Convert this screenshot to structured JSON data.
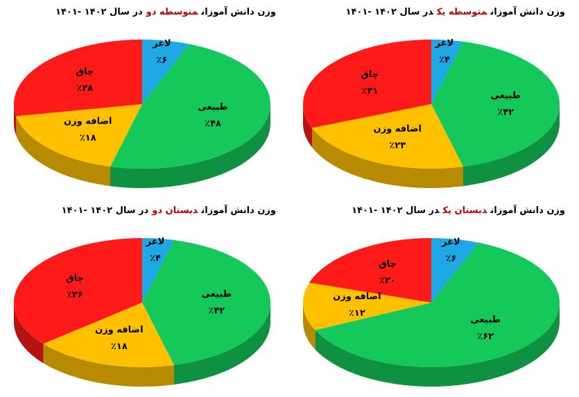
{
  "chart_data": [
    {
      "type": "pie3d",
      "title": [
        "وزن دانش آموزان",
        "متوسطه دو",
        "در سال ۱۴۰۲ -۱۴۰۱"
      ],
      "categories": [
        "لاغر",
        "طبیعی",
        "اضافه وزن",
        "چاق"
      ],
      "values": [
        6,
        48,
        18,
        28
      ],
      "value_labels": [
        "٪۶",
        "٪۴۸",
        "٪۱۸",
        "٪۲۸"
      ],
      "colors": [
        "#1fa8e6",
        "#14c95a",
        "#ffc000",
        "#ff1a1a"
      ]
    },
    {
      "type": "pie3d",
      "title": [
        "وزن دانش آموزان",
        "متوسطه یک",
        "در سال ۱۴۰۲ -۱۴۰۱"
      ],
      "categories": [
        "لاغر",
        "طبیعی",
        "اضافه وزن",
        "چاق"
      ],
      "values": [
        4,
        42,
        23,
        31
      ],
      "value_labels": [
        "٪۴",
        "٪۴۲",
        "٪۲۳",
        "٪۳۱"
      ],
      "colors": [
        "#1fa8e6",
        "#14c95a",
        "#ffc000",
        "#ff1a1a"
      ]
    },
    {
      "type": "pie3d",
      "title": [
        "وزن دانش آموزان",
        "دبستان دو",
        "در سال ۱۴۰۲ -۱۴۰۱"
      ],
      "categories": [
        "لاغر",
        "طبیعی",
        "اضافه وزن",
        "چاق"
      ],
      "values": [
        4,
        42,
        18,
        36
      ],
      "value_labels": [
        "٪۴",
        "٪۴۲",
        "٪۱۸",
        "٪۳۶"
      ],
      "colors": [
        "#1fa8e6",
        "#14c95a",
        "#ffc000",
        "#ff1a1a"
      ]
    },
    {
      "type": "pie3d",
      "title": [
        "وزن دانش آموزان",
        "دبستان یک",
        "در سال ۱۴۰۲ -۱۴۰۱"
      ],
      "categories": [
        "لاغر",
        "طبیعی",
        "اضافه وزن",
        "چاق"
      ],
      "values": [
        6,
        62,
        12,
        20
      ],
      "value_labels": [
        "٪۶",
        "٪۶۲",
        "٪۱۲",
        "٪۲۰"
      ],
      "colors": [
        "#1fa8e6",
        "#14c95a",
        "#ffc000",
        "#ff1a1a"
      ]
    }
  ]
}
